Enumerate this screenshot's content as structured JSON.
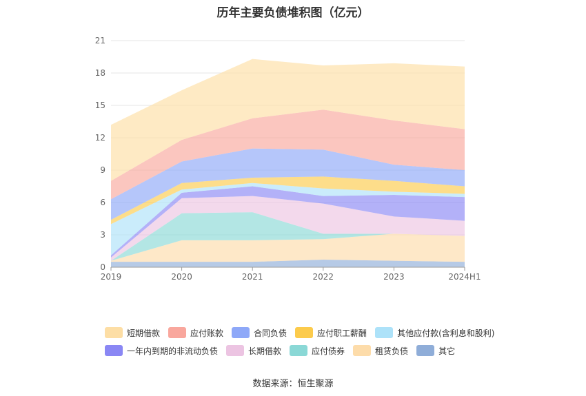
{
  "chart_data": {
    "type": "area",
    "stacked": true,
    "title": "历年主要负债堆积图（亿元）",
    "x": [
      "2019",
      "2020",
      "2021",
      "2022",
      "2023",
      "2024H1"
    ],
    "ylim": [
      0,
      21
    ],
    "yticks": [
      0,
      3,
      6,
      9,
      12,
      15,
      18,
      21
    ],
    "grid": true,
    "legend_position": "bottom",
    "series": [
      {
        "name": "其它",
        "color": "#8FADD8",
        "values": [
          0.5,
          0.5,
          0.5,
          0.7,
          0.6,
          0.5
        ]
      },
      {
        "name": "租赁负债",
        "color": "#FDDCAA",
        "values": [
          0.1,
          2.0,
          2.0,
          1.9,
          2.5,
          2.4
        ]
      },
      {
        "name": "应付债券",
        "color": "#8AD8D6",
        "values": [
          0.0,
          2.5,
          2.6,
          0.5,
          0.0,
          0.0
        ]
      },
      {
        "name": "长期借款",
        "color": "#ECC4E2",
        "values": [
          0.3,
          1.4,
          1.5,
          2.8,
          1.6,
          1.4
        ]
      },
      {
        "name": "一年内到期的非流动负债",
        "color": "#8A87F4",
        "values": [
          0.2,
          0.5,
          0.9,
          0.7,
          2.0,
          2.2
        ]
      },
      {
        "name": "其他应付款(含利息和股利)",
        "color": "#ADE2F9",
        "values": [
          2.9,
          0.3,
          0.3,
          0.7,
          0.3,
          0.3
        ]
      },
      {
        "name": "应付职工薪酬",
        "color": "#FCCB4C",
        "values": [
          0.4,
          0.6,
          0.5,
          1.1,
          1.0,
          0.7
        ]
      },
      {
        "name": "合同负债",
        "color": "#8EA8F8",
        "values": [
          1.9,
          2.0,
          2.7,
          2.5,
          1.5,
          1.5
        ]
      },
      {
        "name": "应付账款",
        "color": "#F9A79D",
        "values": [
          1.7,
          2.0,
          2.8,
          3.7,
          4.1,
          3.8
        ]
      },
      {
        "name": "短期借款",
        "color": "#FDDEA5",
        "values": [
          5.2,
          4.6,
          5.5,
          4.1,
          5.3,
          5.8
        ]
      }
    ],
    "legend_rows": [
      [
        "短期借款",
        "应付账款",
        "合同负债",
        "应付职工薪酬",
        "其他应付款(含利息和股利)"
      ],
      [
        "一年内到期的非流动负债",
        "长期借款",
        "应付债券",
        "租赁负债",
        "其它"
      ]
    ],
    "source": "数据来源：恒生聚源"
  }
}
